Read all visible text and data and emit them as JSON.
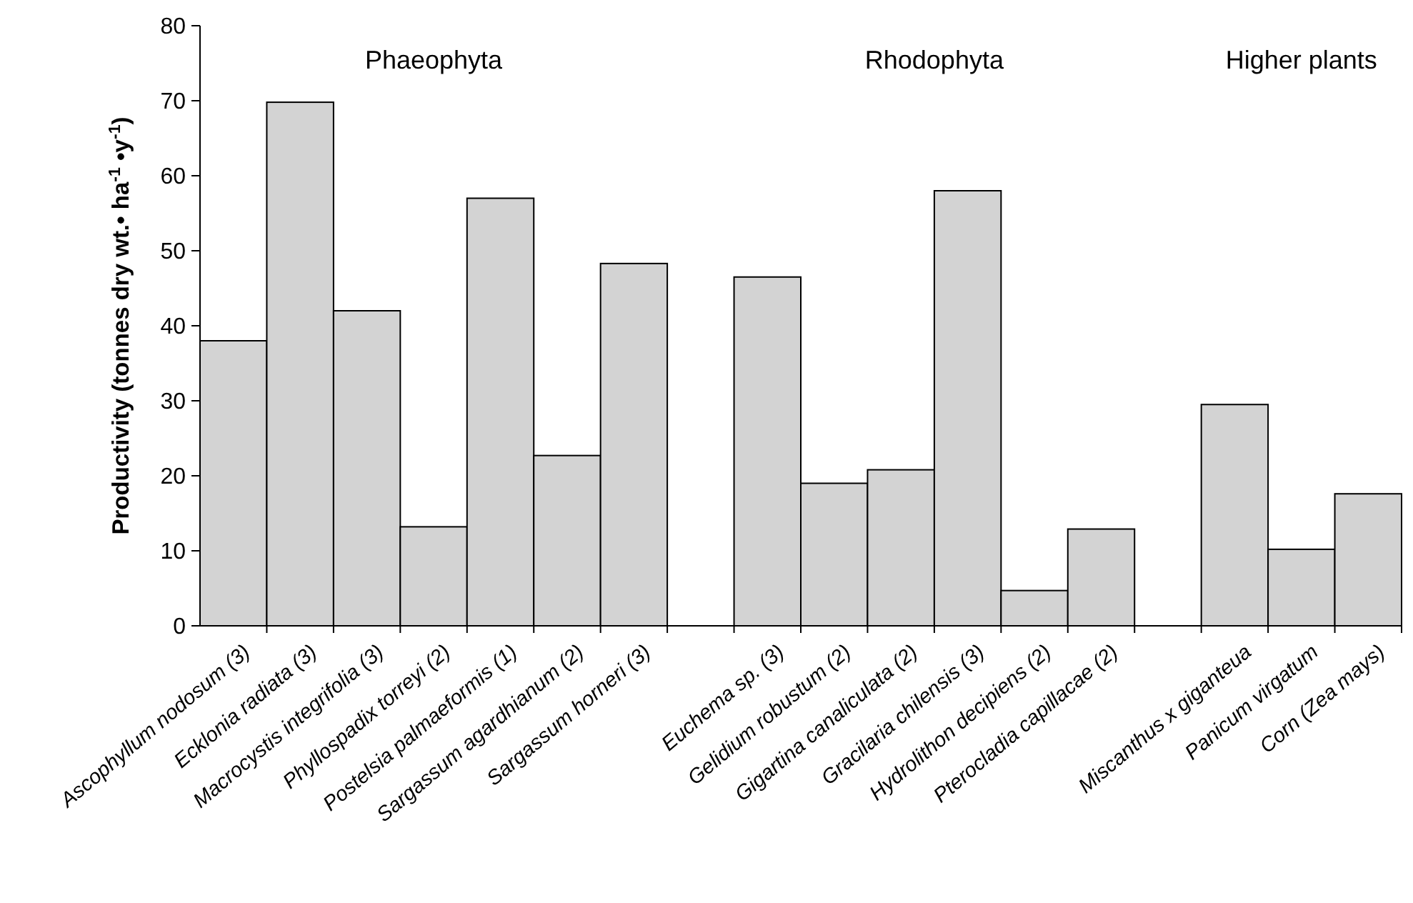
{
  "chart_data": {
    "type": "bar",
    "ylabel": "Productivity (tonnes dry wt.• ha$^{-1}$ •y$^{-1}$)",
    "categories": [
      "Ascophyllum nodosum (3)",
      "Ecklonia radiata (3)",
      "Macrocystis integrifolia (3)",
      "Phyllospadix torreyi (2)",
      "Postelsia palmaeformis (1)",
      "Sargassum agardhianum (2)",
      "Sargassum horneri (3)",
      null,
      "Euchema sp. (3)",
      "Gelidium robustum (2)",
      "Gigartina canaliculata (2)",
      "Gracilaria chilensis (3)",
      "Hydrolithon decipiens (2)",
      "Pterocladia capillacae (2)",
      null,
      "Miscanthus x giganteua",
      "Panicum virgatum",
      "Corn (Zea mays)"
    ],
    "values": [
      38,
      69.8,
      42,
      13.2,
      57,
      22.7,
      48.3,
      null,
      46.5,
      19,
      20.8,
      58,
      4.7,
      12.9,
      null,
      29.5,
      10.2,
      17.6
    ],
    "color": "#d3d3d3",
    "ylim": [
      0,
      80
    ],
    "yticks": [
      0,
      10,
      20,
      30,
      40,
      50,
      60,
      70,
      80
    ],
    "grid": false,
    "annotations": [
      "Phaeophyta",
      "Rhodophyta",
      "Higher plants"
    ]
  }
}
